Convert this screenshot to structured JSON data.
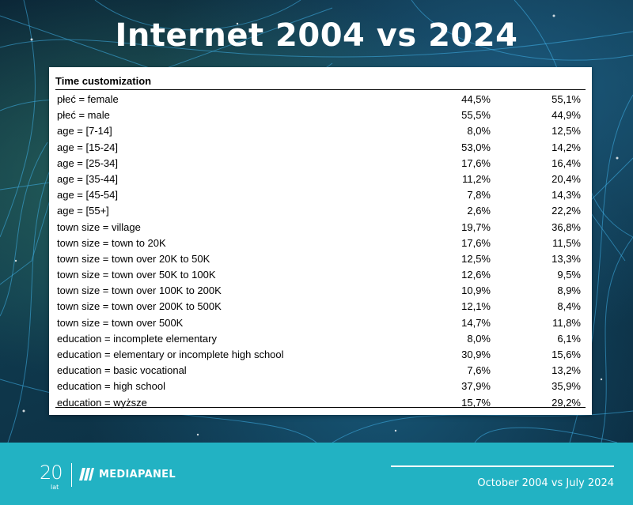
{
  "header": {
    "title": "Internet 2004 vs 2024"
  },
  "table": {
    "title": "Time customization",
    "rows": [
      {
        "label": "płeć = female",
        "v2004": "44,5%",
        "v2024": "55,1%"
      },
      {
        "label": "płeć = male",
        "v2004": "55,5%",
        "v2024": "44,9%"
      },
      {
        "label": "age = [7-14]",
        "v2004": "8,0%",
        "v2024": "12,5%"
      },
      {
        "label": "age = [15-24]",
        "v2004": "53,0%",
        "v2024": "14,2%"
      },
      {
        "label": "age = [25-34]",
        "v2004": "17,6%",
        "v2024": "16,4%"
      },
      {
        "label": "age = [35-44]",
        "v2004": "11,2%",
        "v2024": "20,4%"
      },
      {
        "label": "age = [45-54]",
        "v2004": "7,8%",
        "v2024": "14,3%"
      },
      {
        "label": "age = [55+]",
        "v2004": "2,6%",
        "v2024": "22,2%"
      },
      {
        "label": "town size = village",
        "v2004": "19,7%",
        "v2024": "36,8%"
      },
      {
        "label": "town size = town to 20K",
        "v2004": "17,6%",
        "v2024": "11,5%"
      },
      {
        "label": "town size = town over 20K to 50K",
        "v2004": "12,5%",
        "v2024": "13,3%"
      },
      {
        "label": "town size = town over 50K to 100K",
        "v2004": "12,6%",
        "v2024": "9,5%"
      },
      {
        "label": "town size = town over 100K to 200K",
        "v2004": "10,9%",
        "v2024": "8,9%"
      },
      {
        "label": "town size = town over 200K to 500K",
        "v2004": "12,1%",
        "v2024": "8,4%"
      },
      {
        "label": "town size = town over 500K",
        "v2004": "14,7%",
        "v2024": "11,8%"
      },
      {
        "label": "education = incomplete elementary",
        "v2004": "8,0%",
        "v2024": "6,1%"
      },
      {
        "label": "education = elementary or incomplete high school",
        "v2004": "30,9%",
        "v2024": "15,6%"
      },
      {
        "label": "education = basic vocational",
        "v2004": "7,6%",
        "v2024": "13,2%"
      },
      {
        "label": "education = high school",
        "v2004": "37,9%",
        "v2024": "35,9%"
      },
      {
        "label": "education = wyższe",
        "v2004": "15,7%",
        "v2024": "29,2%"
      }
    ]
  },
  "footer": {
    "logo_number": "20",
    "logo_sub": "lat",
    "brand": "MEDIAPANEL",
    "date_range": "October 2004 vs July 2024"
  },
  "colors": {
    "footer_bg": "#22b2c3",
    "text": "#000000",
    "title": "#ffffff"
  }
}
